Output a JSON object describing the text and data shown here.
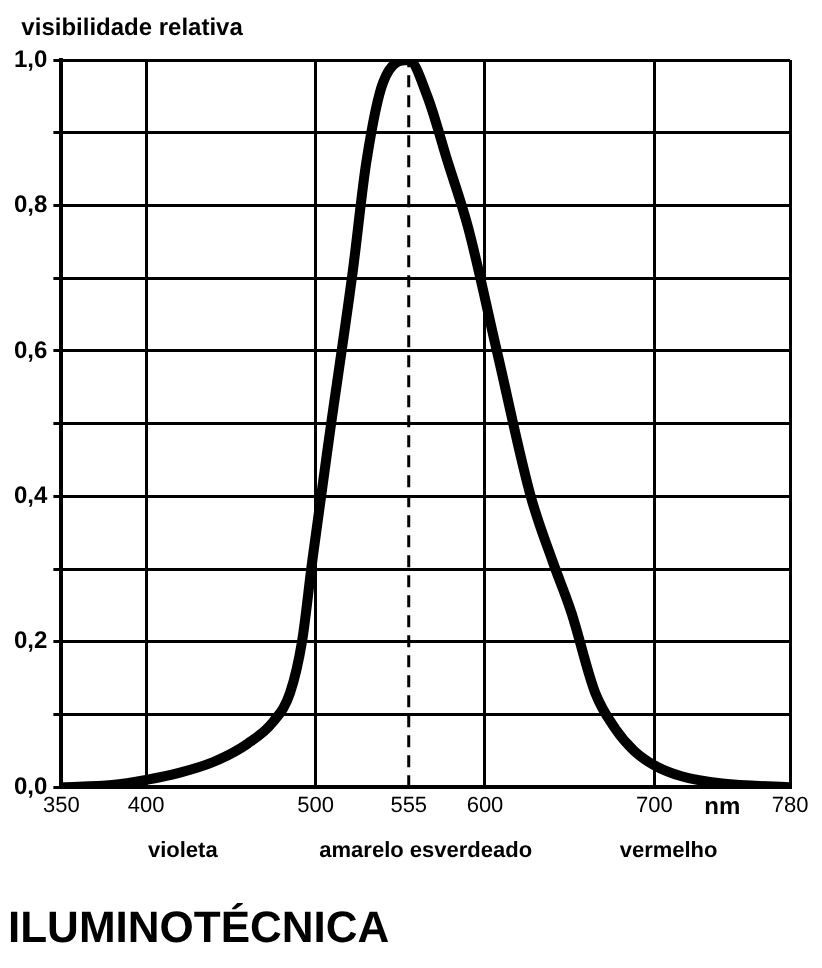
{
  "chart_data": {
    "type": "line",
    "title": "ILUMINOTÉCNICA",
    "xlabel": "nm",
    "ylabel": "visibilidade relativa",
    "x": [
      350,
      380,
      400,
      420,
      440,
      460,
      475,
      485,
      492,
      498,
      508,
      522,
      530,
      540,
      555,
      566,
      578,
      590,
      607,
      627,
      640,
      651,
      665,
      677,
      688,
      700,
      716,
      740,
      780
    ],
    "series": [
      {
        "color": "#000000",
        "values": [
          0,
          0.003,
          0.01,
          0.02,
          0.035,
          0.06,
          0.09,
          0.13,
          0.2,
          0.31,
          0.48,
          0.71,
          0.86,
          0.97,
          1.0,
          0.95,
          0.86,
          0.77,
          0.6,
          0.4,
          0.31,
          0.24,
          0.13,
          0.08,
          0.05,
          0.03,
          0.015,
          0.005,
          0
        ]
      }
    ],
    "xlim": [
      350,
      780
    ],
    "xticks": [
      350,
      400,
      500,
      555,
      600,
      700,
      780
    ],
    "ylim": [
      0,
      1
    ],
    "yticks": [
      {
        "value": 0,
        "label": "0,0"
      },
      {
        "value": 0.1,
        "label": null
      },
      {
        "value": 0.2,
        "label": "0,2"
      },
      {
        "value": 0.3,
        "label": null
      },
      {
        "value": 0.4,
        "label": "0,4"
      },
      {
        "value": 0.5,
        "label": null
      },
      {
        "value": 0.6,
        "label": "0,6"
      },
      {
        "value": 0.7,
        "label": null
      },
      {
        "value": 0.8,
        "label": "0,8"
      },
      {
        "value": 0.9,
        "label": null
      },
      {
        "value": 1,
        "label": "1,0"
      }
    ],
    "ref_lines": [
      {
        "axis": "x",
        "value": 555,
        "color": "#000000",
        "line_style": "dashed"
      }
    ],
    "annotations": [
      "violeta",
      "amarelo esverdeado",
      "vermelho"
    ],
    "grid": true,
    "legend": false,
    "marker": "none",
    "line_style": "solid"
  }
}
